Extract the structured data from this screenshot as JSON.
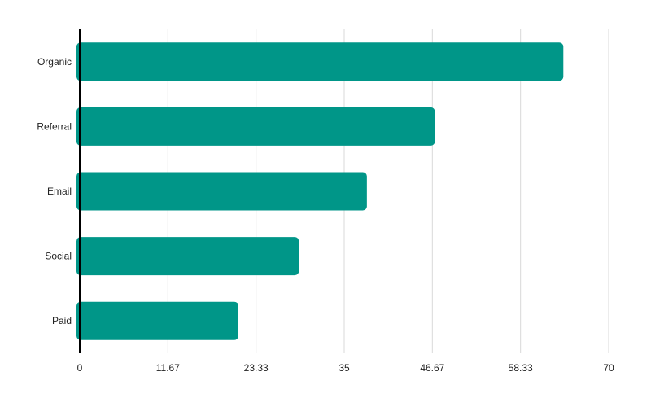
{
  "chart_data": {
    "type": "bar",
    "orientation": "horizontal",
    "categories": [
      "Organic",
      "Referral",
      "Email",
      "Social",
      "Paid"
    ],
    "values": [
      64,
      47,
      38,
      29,
      21
    ],
    "xlim": [
      0,
      70
    ],
    "xticks": [
      "0",
      "11.67",
      "23.33",
      "35",
      "46.67",
      "58.33",
      "70"
    ],
    "grid": "vertical",
    "legend": "none",
    "title": "",
    "xlabel": "",
    "ylabel": "",
    "colors": {
      "bar": "#009688",
      "grid": "#d9d9d9",
      "axis": "#000000"
    }
  }
}
